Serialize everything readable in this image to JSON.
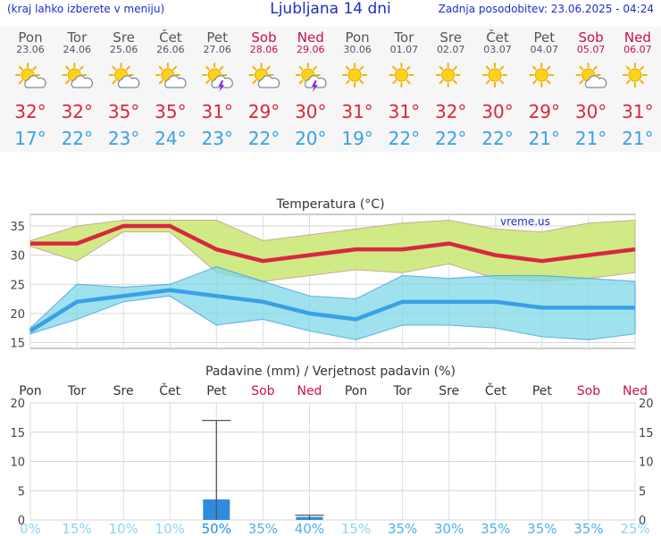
{
  "header": {
    "menu_hint": "(kraj lahko izberete v meniju)",
    "title": "Ljubljana 14 dni",
    "updated": "Zadnja posodobitev: 23.06.2025 - 04:24"
  },
  "colors": {
    "weekend": "#c8104a",
    "weekday": "#555555",
    "tmax": "#d8283f",
    "tmin": "#3aa0e6",
    "max_band": "#cce87a",
    "min_band": "#7fd8e8",
    "bar": "#2e8be0"
  },
  "days": [
    {
      "name": "Pon",
      "date": "23.06",
      "weekend": false,
      "icon": "sun-cloud-icon",
      "tmax": "32°",
      "tmin": "17°"
    },
    {
      "name": "Tor",
      "date": "24.06",
      "weekend": false,
      "icon": "sun-cloud-icon",
      "tmax": "32°",
      "tmin": "22°"
    },
    {
      "name": "Sre",
      "date": "25.06",
      "weekend": false,
      "icon": "sun-cloud-icon",
      "tmax": "35°",
      "tmin": "23°"
    },
    {
      "name": "Čet",
      "date": "26.06",
      "weekend": false,
      "icon": "sun-cloud-icon",
      "tmax": "35°",
      "tmin": "24°"
    },
    {
      "name": "Pet",
      "date": "27.06",
      "weekend": false,
      "icon": "sun-cloud-storm-icon",
      "tmax": "31°",
      "tmin": "23°"
    },
    {
      "name": "Sob",
      "date": "28.06",
      "weekend": true,
      "icon": "sun-cloud-icon",
      "tmax": "29°",
      "tmin": "22°"
    },
    {
      "name": "Ned",
      "date": "29.06",
      "weekend": true,
      "icon": "sun-cloud-storm-icon",
      "tmax": "30°",
      "tmin": "20°"
    },
    {
      "name": "Pon",
      "date": "30.06",
      "weekend": false,
      "icon": "sun-icon",
      "tmax": "31°",
      "tmin": "19°"
    },
    {
      "name": "Tor",
      "date": "01.07",
      "weekend": false,
      "icon": "sun-icon",
      "tmax": "31°",
      "tmin": "22°"
    },
    {
      "name": "Sre",
      "date": "02.07",
      "weekend": false,
      "icon": "sun-icon",
      "tmax": "32°",
      "tmin": "22°"
    },
    {
      "name": "Čet",
      "date": "03.07",
      "weekend": false,
      "icon": "sun-icon",
      "tmax": "30°",
      "tmin": "22°"
    },
    {
      "name": "Pet",
      "date": "04.07",
      "weekend": false,
      "icon": "sun-icon",
      "tmax": "29°",
      "tmin": "21°"
    },
    {
      "name": "Sob",
      "date": "05.07",
      "weekend": true,
      "icon": "sun-cloud-icon",
      "tmax": "30°",
      "tmin": "21°"
    },
    {
      "name": "Ned",
      "date": "06.07",
      "weekend": true,
      "icon": "sun-icon",
      "tmax": "31°",
      "tmin": "21°"
    }
  ],
  "chart_data": [
    {
      "type": "line",
      "title": "Temperatura (°C)",
      "watermark": "vreme.us",
      "grid": true,
      "ylim": [
        14,
        37
      ],
      "yticks": [
        15,
        20,
        25,
        30,
        35
      ],
      "x": [
        0,
        1,
        2,
        3,
        4,
        5,
        6,
        7,
        8,
        9,
        10,
        11,
        12,
        13
      ],
      "series": [
        {
          "values": [
            32,
            32,
            35,
            35,
            31,
            29,
            30,
            31,
            31,
            32,
            30,
            29,
            30,
            31
          ]
        },
        {
          "values": [
            17,
            22,
            23,
            24,
            23,
            22,
            20,
            19,
            22,
            22,
            22,
            21,
            21,
            21
          ]
        }
      ],
      "bands": [
        {
          "upper": [
            32.5,
            35,
            36,
            36,
            36,
            32.5,
            33.5,
            34.5,
            35.5,
            36,
            34.5,
            34,
            35.5,
            36
          ],
          "lower": [
            31.5,
            29,
            34,
            34,
            27,
            25.5,
            26.5,
            27.5,
            27,
            28.5,
            26,
            25.5,
            26,
            27
          ]
        },
        {
          "upper": [
            17.5,
            25,
            24.5,
            25,
            28,
            25.5,
            23,
            22.5,
            26.5,
            26,
            26.5,
            26.5,
            26,
            25.5
          ],
          "lower": [
            16.5,
            19,
            22,
            23,
            18,
            19,
            17,
            15.5,
            18,
            18,
            17.5,
            16,
            15.5,
            16.5
          ]
        }
      ]
    },
    {
      "type": "bar",
      "title": "Padavine (mm) / Verjetnost padavin (%)",
      "grid": true,
      "ylim": [
        0,
        20
      ],
      "yticks": [
        0,
        5,
        10,
        15,
        20
      ],
      "categories": [
        "Pon",
        "Tor",
        "Sre",
        "Čet",
        "Pet",
        "Sob",
        "Ned",
        "Pon",
        "Tor",
        "Sre",
        "Čet",
        "Pet",
        "Sob",
        "Ned"
      ],
      "values": [
        0,
        0,
        0,
        0,
        3.5,
        0,
        0.5,
        0,
        0,
        0,
        0,
        0,
        0,
        0
      ],
      "error_max": [
        0,
        0,
        0,
        0,
        17,
        0,
        0.8,
        0,
        0,
        0,
        0,
        0,
        0,
        0
      ],
      "probability": [
        "0%",
        "15%",
        "10%",
        "10%",
        "50%",
        "35%",
        "40%",
        "15%",
        "35%",
        "30%",
        "35%",
        "35%",
        "35%",
        "25%"
      ]
    }
  ]
}
